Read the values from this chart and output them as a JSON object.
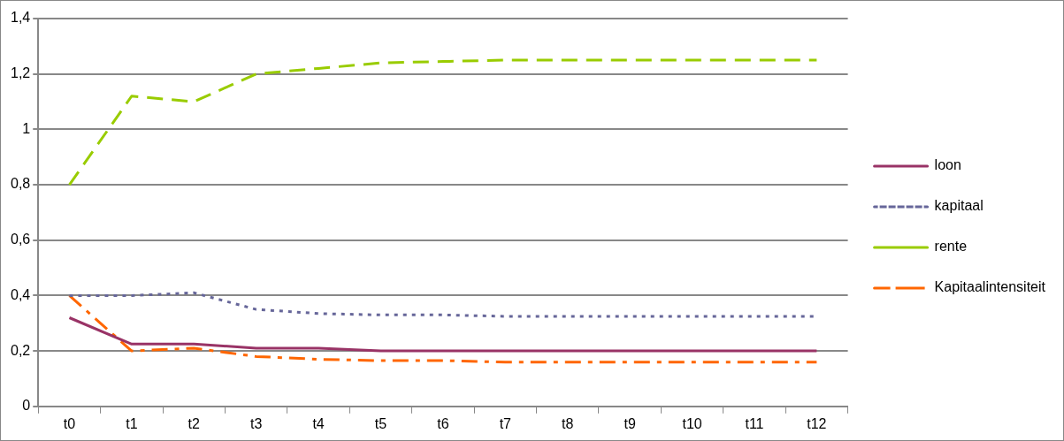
{
  "chart_data": {
    "type": "line",
    "categories": [
      "t0",
      "t1",
      "t2",
      "t3",
      "t4",
      "t5",
      "t6",
      "t7",
      "t8",
      "t9",
      "t10",
      "t11",
      "t12"
    ],
    "series": [
      {
        "name": "loon",
        "color": "#993366",
        "line_style": "solid",
        "values": [
          0.32,
          0.225,
          0.225,
          0.21,
          0.21,
          0.2,
          0.2,
          0.2,
          0.2,
          0.2,
          0.2,
          0.2,
          0.2
        ]
      },
      {
        "name": "kapitaal",
        "color": "#666699",
        "line_style": "dotted",
        "values": [
          0.4,
          0.4,
          0.41,
          0.35,
          0.335,
          0.33,
          0.33,
          0.325,
          0.325,
          0.325,
          0.325,
          0.325,
          0.325
        ]
      },
      {
        "name": "rente",
        "color": "#99cc00",
        "line_style": "dashed",
        "values": [
          0.8,
          1.12,
          1.1,
          1.2,
          1.22,
          1.24,
          1.245,
          1.25,
          1.25,
          1.25,
          1.25,
          1.25,
          1.25
        ]
      },
      {
        "name": "Kapitaalintensiteit",
        "color": "#ff6600",
        "line_style": "dashdot",
        "values": [
          0.4,
          0.2,
          0.21,
          0.18,
          0.17,
          0.165,
          0.165,
          0.16,
          0.16,
          0.16,
          0.16,
          0.16,
          0.16
        ]
      }
    ],
    "ylim": [
      0,
      1.4
    ],
    "yticks": [
      {
        "value": 0,
        "label": "0"
      },
      {
        "value": 0.2,
        "label": "0,2"
      },
      {
        "value": 0.4,
        "label": "0,4"
      },
      {
        "value": 0.6,
        "label": "0,6"
      },
      {
        "value": 0.8,
        "label": "0,8"
      },
      {
        "value": 1,
        "label": "1"
      },
      {
        "value": 1.2,
        "label": "1,2"
      },
      {
        "value": 1.4,
        "label": "1,4"
      }
    ],
    "grid": "y",
    "legend": "right",
    "marker": "none"
  }
}
